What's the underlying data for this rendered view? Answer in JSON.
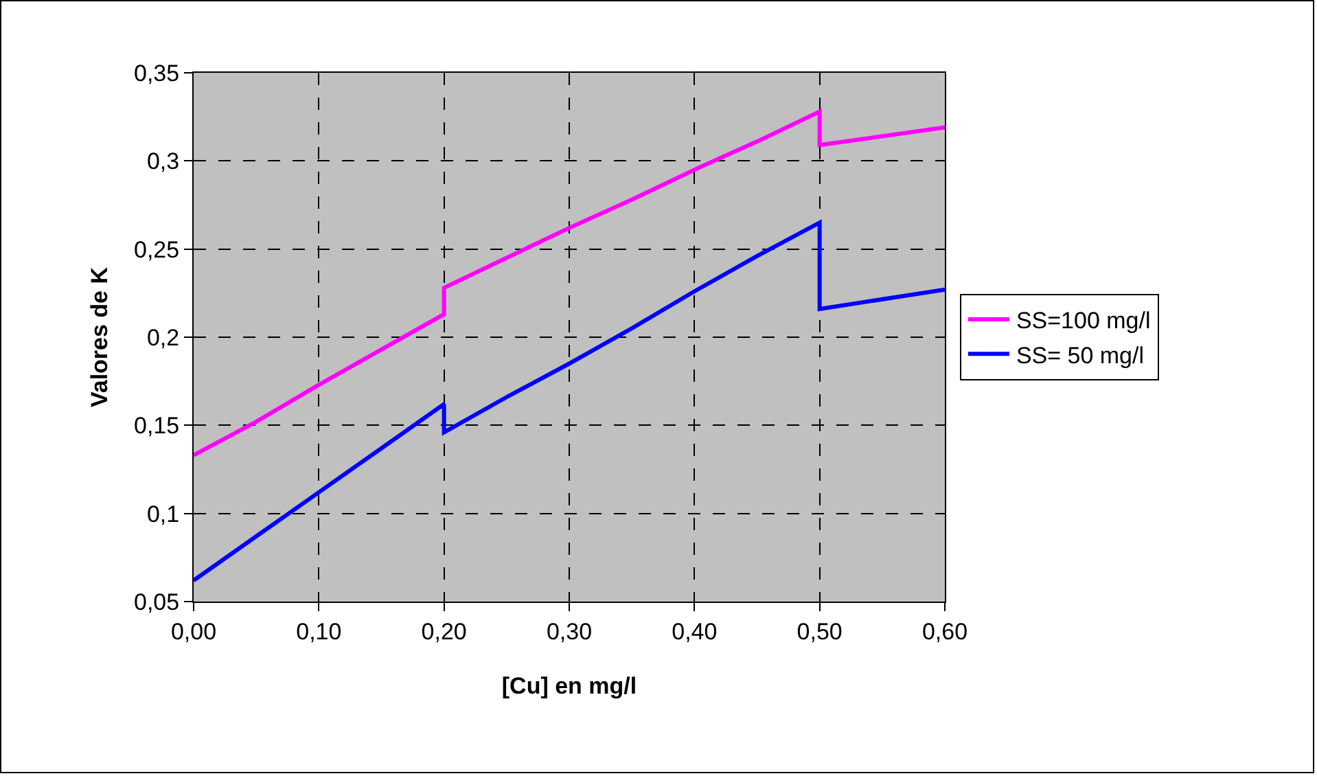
{
  "chart_data": {
    "type": "line",
    "xlabel": "[Cu] en mg/l",
    "ylabel": "Valores de K",
    "xlim": [
      0,
      0.6
    ],
    "ylim": [
      0.05,
      0.35
    ],
    "xticks": [
      {
        "value": 0,
        "label": "0,00"
      },
      {
        "value": 0.1,
        "label": "0,10"
      },
      {
        "value": 0.2,
        "label": "0,20"
      },
      {
        "value": 0.3,
        "label": "0,30"
      },
      {
        "value": 0.4,
        "label": "0,40"
      },
      {
        "value": 0.5,
        "label": "0,50"
      },
      {
        "value": 0.6,
        "label": "0,60"
      }
    ],
    "yticks": [
      {
        "value": 0.05,
        "label": "0,05"
      },
      {
        "value": 0.1,
        "label": "0,1"
      },
      {
        "value": 0.15,
        "label": "0,15"
      },
      {
        "value": 0.2,
        "label": "0,2"
      },
      {
        "value": 0.25,
        "label": "0,25"
      },
      {
        "value": 0.3,
        "label": "0,3"
      },
      {
        "value": 0.35,
        "label": "0,35"
      }
    ],
    "grid": true,
    "legend": "right",
    "marker": "none",
    "line_style": "solid",
    "series": [
      {
        "name": "SS=100 mg/l",
        "color": "#ff00ff",
        "x": [
          0,
          0.05,
          0.1,
          0.15,
          0.2,
          0.2,
          0.25,
          0.3,
          0.35,
          0.4,
          0.45,
          0.5,
          0.5,
          0.6
        ],
        "values": [
          0.133,
          0.152,
          0.173,
          0.193,
          0.213,
          0.228,
          0.245,
          0.262,
          0.278,
          0.295,
          0.311,
          0.328,
          0.309,
          0.319
        ]
      },
      {
        "name": "SS= 50 mg/l",
        "color": "#0000ff",
        "x": [
          0,
          0.05,
          0.1,
          0.15,
          0.2,
          0.2,
          0.25,
          0.3,
          0.35,
          0.4,
          0.45,
          0.5,
          0.5,
          0.6
        ],
        "values": [
          0.062,
          0.087,
          0.112,
          0.137,
          0.162,
          0.146,
          0.166,
          0.185,
          0.205,
          0.226,
          0.246,
          0.265,
          0.216,
          0.227
        ]
      }
    ]
  }
}
